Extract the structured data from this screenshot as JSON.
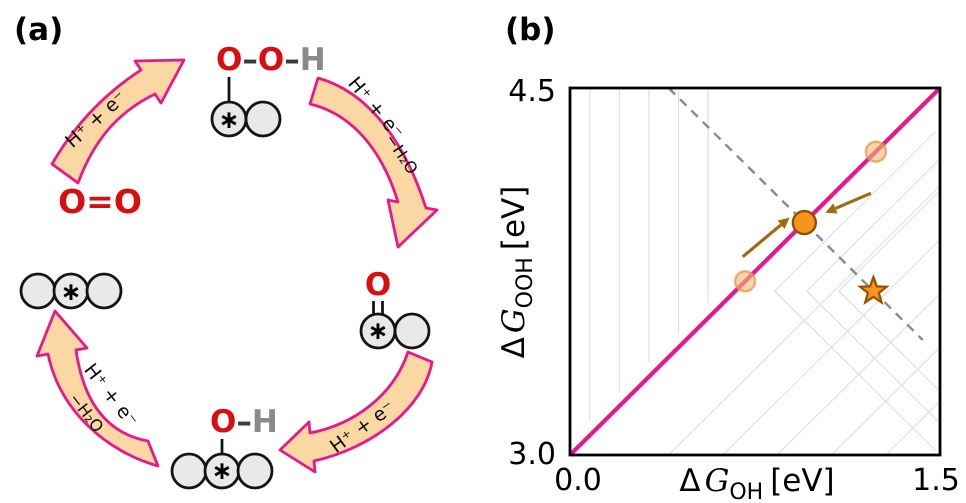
{
  "figure": {
    "panel_a_label": "(a)",
    "panel_b_label": "(b)"
  },
  "panel_a": {
    "species": {
      "oxygen_molecule": "O=O",
      "ooh": {
        "o1": "O",
        "b1": "–",
        "o2": "O",
        "b2": "–",
        "h": "H"
      },
      "o": {
        "o": "O"
      },
      "oh": {
        "o": "O",
        "b": "–",
        "h": "H"
      },
      "site_marker": "∗"
    },
    "arrows": {
      "step1_label": "H⁺ + e⁻",
      "step2_label": "H⁺ + e⁻",
      "step2_sublabel": "−H₂O",
      "step3_label": "H⁺ + e⁻",
      "step4_label": "H⁺ + e⁻",
      "step4_sublabel": "−H₂O"
    }
  },
  "panel_b": {
    "ylabel": {
      "delta": "Δ",
      "symbol": "G",
      "subscript": "OOH",
      "unit": "[eV]"
    },
    "xlabel": {
      "delta": "Δ",
      "symbol": "G",
      "subscript": "OH",
      "unit": "[eV]"
    },
    "yticks": {
      "top": "4.5",
      "bottom": "3.0"
    },
    "xticks": {
      "left": "0.0",
      "right": "1.5"
    }
  },
  "chart_data": {
    "type": "scatter",
    "xlabel": "ΔG_OH [eV]",
    "ylabel": "ΔG_OOH [eV]",
    "xlim": [
      0.0,
      1.5
    ],
    "ylim": [
      3.0,
      4.5
    ],
    "xticks": [
      0.0,
      1.5
    ],
    "yticks": [
      3.0,
      4.5
    ],
    "grid": false,
    "scaling_line": {
      "slope": 1.0,
      "intercept": 3.0
    },
    "dashed_line": {
      "slope": -1.0,
      "intercept": 4.9,
      "x_start": 0.4,
      "x_end": 1.43
    },
    "points": [
      {
        "x": 0.71,
        "y": 3.71,
        "style": "faded"
      },
      {
        "x": 0.95,
        "y": 3.95,
        "style": "solid"
      },
      {
        "x": 1.24,
        "y": 4.24,
        "style": "faded"
      }
    ],
    "star": {
      "x": 1.23,
      "y": 3.67
    },
    "shift_arrows": [
      {
        "x1": 0.7,
        "y1": 3.81,
        "x2": 0.89,
        "y2": 3.97
      },
      {
        "x1": 1.22,
        "y1": 4.07,
        "x2": 1.035,
        "y2": 3.99
      }
    ]
  },
  "colors": {
    "accent_pink": "#e8188b",
    "cycle_arrow_fill": "#fbd7a3",
    "orange_point": "#f7941d",
    "faded_orange": "#f3b873",
    "shift_arrow_brown": "#a36a10",
    "oxygen_red": "#d90f0f",
    "hydrogen_gray": "#8a8a8a",
    "atom_fill": "#e9e9e9",
    "contour_gray": "#dedede",
    "dashed_gray": "#8a8a8a"
  }
}
